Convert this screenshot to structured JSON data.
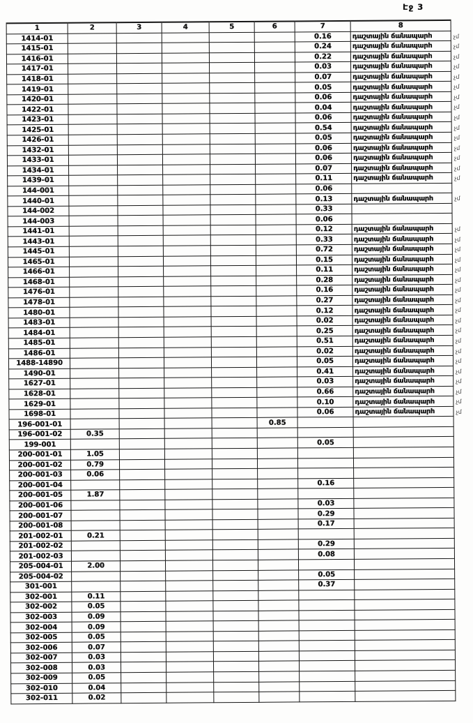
{
  "page": {
    "label": "Էջ 3"
  },
  "table": {
    "headers": [
      "1",
      "2",
      "3",
      "4",
      "5",
      "6",
      "7",
      "8"
    ],
    "road_text": "դաշտային ճանապարհ",
    "margin_note": "չմ",
    "rows": [
      [
        "1414-01",
        "",
        "",
        "",
        "",
        "",
        "0.16",
        "դաշտային ճանապարհ",
        "չմ"
      ],
      [
        "1415-01",
        "",
        "",
        "",
        "",
        "",
        "0.24",
        "դաշտային ճանապարհ",
        "չմ"
      ],
      [
        "1416-01",
        "",
        "",
        "",
        "",
        "",
        "0.22",
        "դաշտային ճանապարհ",
        "չմ"
      ],
      [
        "1417-01",
        "",
        "",
        "",
        "",
        "",
        "0.03",
        "դաշտային ճանապարհ",
        "չմ"
      ],
      [
        "1418-01",
        "",
        "",
        "",
        "",
        "",
        "0.07",
        "դաշտային ճանապարհ",
        "չմ"
      ],
      [
        "1419-01",
        "",
        "",
        "",
        "",
        "",
        "0.05",
        "դաշտային ճանապարհ",
        "չմ"
      ],
      [
        "1420-01",
        "",
        "",
        "",
        "",
        "",
        "0.06",
        "դաշտային ճանապարհ",
        "չմ"
      ],
      [
        "1422-01",
        "",
        "",
        "",
        "",
        "",
        "0.04",
        "դաշտային ճանապարհ",
        "չմ"
      ],
      [
        "1423-01",
        "",
        "",
        "",
        "",
        "",
        "0.06",
        "դաշտային ճանապարհ",
        "չմ"
      ],
      [
        "1425-01",
        "",
        "",
        "",
        "",
        "",
        "0.54",
        "դաշտային ճանապարհ",
        "չմ"
      ],
      [
        "1426-01",
        "",
        "",
        "",
        "",
        "",
        "0.05",
        "դաշտային ճանապարհ",
        "չմ"
      ],
      [
        "1432-01",
        "",
        "",
        "",
        "",
        "",
        "0.06",
        "դաշտային ճանապարհ",
        "չմ"
      ],
      [
        "1433-01",
        "",
        "",
        "",
        "",
        "",
        "0.06",
        "դաշտային ճանապարհ",
        "չմ"
      ],
      [
        "1434-01",
        "",
        "",
        "",
        "",
        "",
        "0.07",
        "դաշտային ճանապարհ",
        "չմ"
      ],
      [
        "1439-01",
        "",
        "",
        "",
        "",
        "",
        "0.11",
        "դաշտային ճանապարհ",
        "չմ"
      ],
      [
        "144-001",
        "",
        "",
        "",
        "",
        "",
        "0.06",
        "",
        ""
      ],
      [
        "1440-01",
        "",
        "",
        "",
        "",
        "",
        "0.13",
        "դաշտային ճանապարհ",
        "չմ"
      ],
      [
        "144-002",
        "",
        "",
        "",
        "",
        "",
        "0.33",
        "",
        ""
      ],
      [
        "144-003",
        "",
        "",
        "",
        "",
        "",
        "0.06",
        "",
        ""
      ],
      [
        "1441-01",
        "",
        "",
        "",
        "",
        "",
        "0.12",
        "դաշտային ճանապարհ",
        "չմ"
      ],
      [
        "1443-01",
        "",
        "",
        "",
        "",
        "",
        "0.33",
        "դաշտային ճանապարհ",
        "չմ"
      ],
      [
        "1445-01",
        "",
        "",
        "",
        "",
        "",
        "0.72",
        "դաշտային ճանապարհ",
        "չմ"
      ],
      [
        "1465-01",
        "",
        "",
        "",
        "",
        "",
        "0.15",
        "դաշտային ճանապարհ",
        "չմ"
      ],
      [
        "1466-01",
        "",
        "",
        "",
        "",
        "",
        "0.11",
        "դաշտային ճանապարհ",
        "չմ"
      ],
      [
        "1468-01",
        "",
        "",
        "",
        "",
        "",
        "0.28",
        "դաշտային ճանապարհ",
        "չմ"
      ],
      [
        "1476-01",
        "",
        "",
        "",
        "",
        "",
        "0.16",
        "դաշտային ճանապարհ",
        "չմ"
      ],
      [
        "1478-01",
        "",
        "",
        "",
        "",
        "",
        "0.27",
        "դաշտային ճանապարհ",
        "չմ"
      ],
      [
        "1480-01",
        "",
        "",
        "",
        "",
        "",
        "0.12",
        "դաշտային ճանապարհ",
        "չմ"
      ],
      [
        "1483-01",
        "",
        "",
        "",
        "",
        "",
        "0.02",
        "դաշտային ճանապարհ",
        "չմ"
      ],
      [
        "1484-01",
        "",
        "",
        "",
        "",
        "",
        "0.25",
        "դաշտային ճանապարհ",
        "չմ"
      ],
      [
        "1485-01",
        "",
        "",
        "",
        "",
        "",
        "0.51",
        "դաշտային ճանապարհ",
        "չմ"
      ],
      [
        "1486-01",
        "",
        "",
        "",
        "",
        "",
        "0.02",
        "դաշտային ճանապարհ",
        "չմ"
      ],
      [
        "1488-14890",
        "",
        "",
        "",
        "",
        "",
        "0.05",
        "դաշտային ճանապարհ",
        "չմ"
      ],
      [
        "1490-01",
        "",
        "",
        "",
        "",
        "",
        "0.41",
        "դաշտային ճանապարհ",
        "չմ"
      ],
      [
        "1627-01",
        "",
        "",
        "",
        "",
        "",
        "0.03",
        "դաշտային ճանապարհ",
        "չմ"
      ],
      [
        "1628-01",
        "",
        "",
        "",
        "",
        "",
        "0.66",
        "դաշտային ճանապարհ",
        "չմ"
      ],
      [
        "1629-01",
        "",
        "",
        "",
        "",
        "",
        "0.10",
        "դաշտային ճանապարհ",
        "չմ"
      ],
      [
        "1698-01",
        "",
        "",
        "",
        "",
        "",
        "0.06",
        "դաշտային ճանապարհ",
        "չմ"
      ],
      [
        "196-001-01",
        "",
        "",
        "",
        "",
        "0.85",
        "",
        "",
        ""
      ],
      [
        "196-001-02",
        "0.35",
        "",
        "",
        "",
        "",
        "",
        "",
        ""
      ],
      [
        "199-001",
        "",
        "",
        "",
        "",
        "",
        "0.05",
        "",
        ""
      ],
      [
        "200-001-01",
        "1.05",
        "",
        "",
        "",
        "",
        "",
        "",
        ""
      ],
      [
        "200-001-02",
        "0.79",
        "",
        "",
        "",
        "",
        "",
        "",
        ""
      ],
      [
        "200-001-03",
        "0.06",
        "",
        "",
        "",
        "",
        "",
        "",
        ""
      ],
      [
        "200-001-04",
        "",
        "",
        "",
        "",
        "",
        "0.16",
        "",
        ""
      ],
      [
        "200-001-05",
        "1.87",
        "",
        "",
        "",
        "",
        "",
        "",
        ""
      ],
      [
        "200-001-06",
        "",
        "",
        "",
        "",
        "",
        "0.03",
        "",
        ""
      ],
      [
        "200-001-07",
        "",
        "",
        "",
        "",
        "",
        "0.29",
        "",
        ""
      ],
      [
        "200-001-08",
        "",
        "",
        "",
        "",
        "",
        "0.17",
        "",
        ""
      ],
      [
        "201-002-01",
        "0.21",
        "",
        "",
        "",
        "",
        "",
        "",
        ""
      ],
      [
        "201-002-02",
        "",
        "",
        "",
        "",
        "",
        "0.29",
        "",
        ""
      ],
      [
        "201-002-03",
        "",
        "",
        "",
        "",
        "",
        "0.08",
        "",
        ""
      ],
      [
        "205-004-01",
        "2.00",
        "",
        "",
        "",
        "",
        "",
        "",
        ""
      ],
      [
        "205-004-02",
        "",
        "",
        "",
        "",
        "",
        "0.05",
        "",
        ""
      ],
      [
        "301-001",
        "",
        "",
        "",
        "",
        "",
        "0.37",
        "",
        ""
      ],
      [
        "302-001",
        "0.11",
        "",
        "",
        "",
        "",
        "",
        "",
        ""
      ],
      [
        "302-002",
        "0.05",
        "",
        "",
        "",
        "",
        "",
        "",
        ""
      ],
      [
        "302-003",
        "0.09",
        "",
        "",
        "",
        "",
        "",
        "",
        ""
      ],
      [
        "302-004",
        "0.09",
        "",
        "",
        "",
        "",
        "",
        "",
        ""
      ],
      [
        "302-005",
        "0.05",
        "",
        "",
        "",
        "",
        "",
        "",
        ""
      ],
      [
        "302-006",
        "0.07",
        "",
        "",
        "",
        "",
        "",
        "",
        ""
      ],
      [
        "302-007",
        "0.03",
        "",
        "",
        "",
        "",
        "",
        "",
        ""
      ],
      [
        "302-008",
        "0.03",
        "",
        "",
        "",
        "",
        "",
        "",
        ""
      ],
      [
        "302-009",
        "0.05",
        "",
        "",
        "",
        "",
        "",
        "",
        ""
      ],
      [
        "302-010",
        "0.04",
        "",
        "",
        "",
        "",
        "",
        "",
        ""
      ],
      [
        "302-011",
        "0.02",
        "",
        "",
        "",
        "",
        "",
        "",
        ""
      ]
    ]
  }
}
